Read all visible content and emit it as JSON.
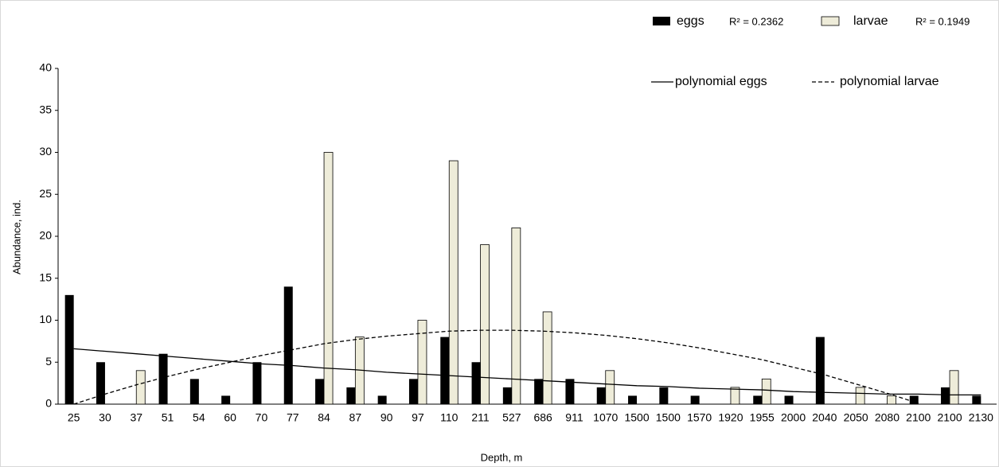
{
  "chart_data": {
    "type": "bar",
    "x_label": "Depth, m",
    "y_label": "Abundance, ind.",
    "categories": [
      "25",
      "30",
      "37",
      "51",
      "54",
      "60",
      "70",
      "77",
      "84",
      "87",
      "90",
      "97",
      "110",
      "211",
      "527",
      "686",
      "911",
      "1070",
      "1500",
      "1500",
      "1570",
      "1920",
      "1955",
      "2000",
      "2040",
      "2050",
      "2080",
      "2100",
      "2100",
      "2130"
    ],
    "series": [
      {
        "name": "eggs",
        "color": "#000000",
        "r2": "R² = 0.2362",
        "values": [
          13,
          5,
          0,
          6,
          3,
          1,
          5,
          14,
          3,
          2,
          1,
          3,
          8,
          5,
          2,
          3,
          3,
          2,
          1,
          2,
          1,
          0,
          1,
          1,
          8,
          0,
          0,
          1,
          2,
          1
        ]
      },
      {
        "name": "larvae",
        "color": "#eeecd9",
        "r2": "R² = 0.1949",
        "values": [
          0,
          0,
          4,
          0,
          0,
          0,
          0,
          0,
          30,
          8,
          0,
          10,
          29,
          19,
          21,
          11,
          0,
          4,
          0,
          0,
          0,
          2,
          3,
          0,
          0,
          2,
          1,
          0,
          4,
          0
        ]
      }
    ],
    "trends": [
      {
        "name": "polynomial eggs",
        "style": "solid",
        "values": [
          6.6,
          6.3,
          6.0,
          5.7,
          5.4,
          5.1,
          4.8,
          4.6,
          4.3,
          4.1,
          3.8,
          3.6,
          3.4,
          3.2,
          3.0,
          2.8,
          2.6,
          2.4,
          2.2,
          2.1,
          1.9,
          1.8,
          1.7,
          1.5,
          1.4,
          1.3,
          1.2,
          1.2,
          1.1,
          1.1
        ]
      },
      {
        "name": "polynomial larvae",
        "style": "dashed",
        "values": [
          0,
          1.2,
          2.3,
          3.3,
          4.2,
          5.0,
          5.8,
          6.5,
          7.2,
          7.7,
          8.1,
          8.4,
          8.7,
          8.8,
          8.8,
          8.7,
          8.5,
          8.2,
          7.8,
          7.3,
          6.7,
          6.0,
          5.3,
          4.4,
          3.5,
          2.4,
          1.3,
          0.1,
          null,
          null
        ]
      }
    ],
    "ylim": [
      0,
      40
    ],
    "yticks": [
      0,
      5,
      10,
      15,
      20,
      25,
      30,
      35,
      40
    ],
    "grid": false
  }
}
